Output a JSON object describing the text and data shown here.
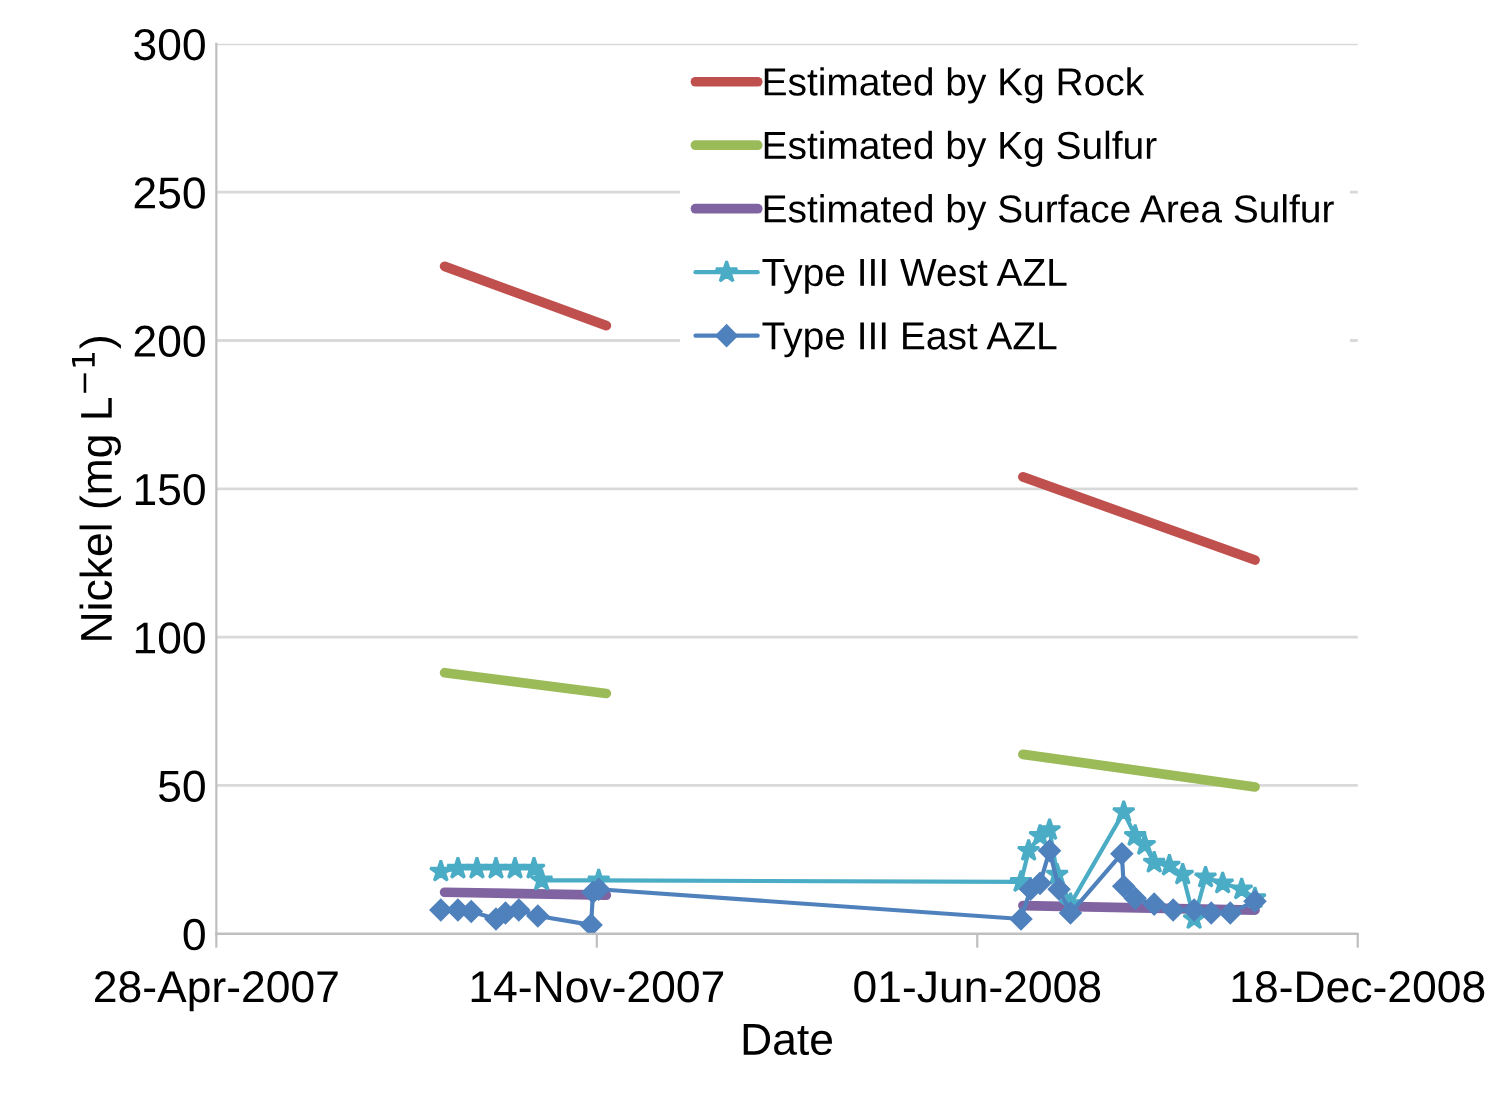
{
  "chart_data": {
    "type": "line",
    "xlabel": "Date",
    "ylabel": "Nickel (mg L$^{−1}$)",
    "xlim": [
      "2007-04-28",
      "2008-12-18"
    ],
    "xticks": [
      {
        "value": "2007-04-28",
        "label": "28-Apr-2007"
      },
      {
        "value": "2007-11-14",
        "label": "14-Nov-2007"
      },
      {
        "value": "2008-06-01",
        "label": "01-Jun-2008"
      },
      {
        "value": "2008-12-18",
        "label": "18-Dec-2008"
      }
    ],
    "ylim": [
      0,
      300
    ],
    "yticks": [
      0,
      50,
      100,
      150,
      200,
      250,
      300
    ],
    "grid": "y",
    "legend": "top right",
    "series": [
      {
        "name": "Estimated by Kg Rock",
        "color": "#c0504d",
        "marker": "none",
        "x": [
          "2007-08-26",
          "2007-11-19"
        ],
        "values": [
          225,
          205
        ]
      },
      {
        "name": "Estimated by Kg Sulfur",
        "color": "#9bbb59",
        "marker": "none",
        "x": [
          "2007-08-26",
          "2007-11-19"
        ],
        "values": [
          88,
          81
        ]
      },
      {
        "name": "Estimated by Surface Area Sulfur",
        "color": "#8064a2",
        "marker": "none",
        "x": [
          "2007-08-26",
          "2007-11-19"
        ],
        "values": [
          14,
          13
        ]
      },
      {
        "color": "#c0504d",
        "marker": "none",
        "x": [
          "2008-06-25",
          "2008-10-25"
        ],
        "values": [
          154,
          126
        ]
      },
      {
        "color": "#9bbb59",
        "marker": "none",
        "x": [
          "2008-06-25",
          "2008-10-25"
        ],
        "values": [
          60.5,
          49.5
        ]
      },
      {
        "color": "#8064a2",
        "marker": "none",
        "x": [
          "2008-06-25",
          "2008-10-25"
        ],
        "values": [
          9.5,
          8
        ]
      },
      {
        "name": "Type III West AZL",
        "color": "#4bacc6",
        "marker": "star",
        "x": [
          "2007-08-24",
          "2007-09-02",
          "2007-09-12",
          "2007-09-22",
          "2007-10-02",
          "2007-10-12",
          "2007-10-16",
          "2007-11-15",
          "2008-06-24",
          "2008-06-28",
          "2008-07-04",
          "2008-07-09",
          "2008-07-13",
          "2008-07-20",
          "2008-08-17",
          "2008-08-23",
          "2008-08-28",
          "2008-09-02",
          "2008-09-10",
          "2008-09-17",
          "2008-09-23",
          "2008-09-29",
          "2008-10-08",
          "2008-10-18",
          "2008-10-25"
        ],
        "values": [
          21,
          22,
          22,
          22,
          22,
          22,
          18,
          18,
          17.5,
          28,
          33,
          35,
          20,
          10,
          41,
          33,
          30,
          24,
          23,
          20,
          5,
          19,
          17,
          15,
          12
        ]
      },
      {
        "name": "Type III East AZL",
        "color": "#4f81bd",
        "marker": "diamond",
        "x": [
          "2007-08-24",
          "2007-09-02",
          "2007-09-09",
          "2007-09-22",
          "2007-09-27",
          "2007-10-04",
          "2007-10-14",
          "2007-11-11",
          "2007-11-12",
          "2007-11-15",
          "2008-06-24",
          "2008-06-29",
          "2008-07-04",
          "2008-07-09",
          "2008-07-14",
          "2008-07-20",
          "2008-08-16",
          "2008-08-17",
          "2008-08-23",
          "2008-09-02",
          "2008-09-12",
          "2008-09-23",
          "2008-10-02",
          "2008-10-12",
          "2008-10-25"
        ],
        "values": [
          8,
          8,
          7.5,
          5,
          7,
          8,
          6,
          3,
          14,
          15,
          5,
          15,
          17,
          28,
          15,
          7,
          27,
          16,
          12,
          10,
          8,
          8,
          7,
          7,
          11
        ]
      }
    ]
  }
}
